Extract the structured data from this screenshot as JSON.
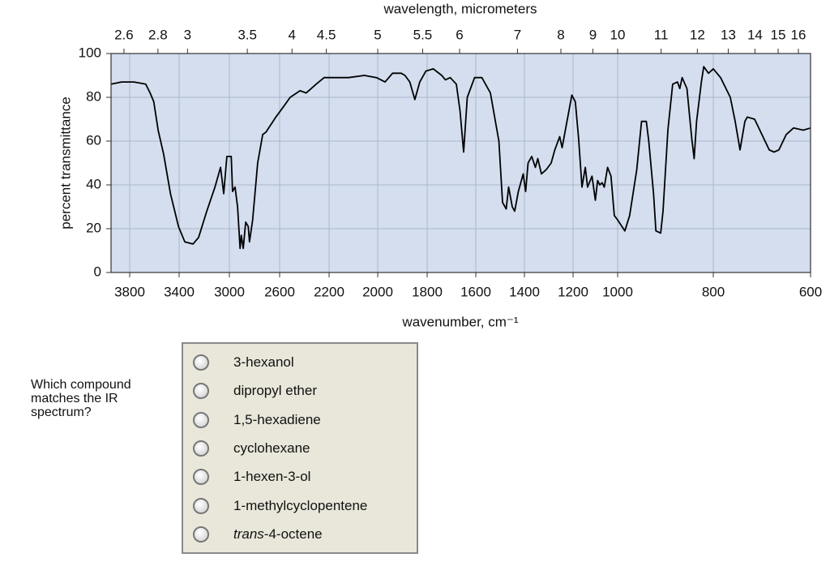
{
  "chart_data": {
    "type": "line",
    "x2_label": "wavelength, micrometers",
    "xlabel": "wavenumber, cm⁻¹",
    "ylabel": "percent transmittance",
    "xlim": [
      3950,
      600
    ],
    "ylim": [
      0,
      100
    ],
    "xticks": [
      3800,
      3400,
      3000,
      2600,
      2200,
      2000,
      1800,
      1600,
      1400,
      1200,
      1000,
      800,
      600
    ],
    "yticks": [
      0,
      20,
      40,
      60,
      80,
      100
    ],
    "x2ticks": [
      2.6,
      2.8,
      3,
      3.5,
      4,
      4.5,
      5,
      5.5,
      6,
      7,
      8,
      9,
      10,
      11,
      12,
      13,
      14,
      15,
      16
    ],
    "grid": true,
    "plot_background": "#d4deef",
    "series": [
      {
        "name": "spectrum",
        "color": "#000000",
        "x": [
          3950,
          3865,
          3765,
          3670,
          3635,
          3605,
          3570,
          3525,
          3470,
          3405,
          3355,
          3290,
          3245,
          3180,
          3115,
          3070,
          3045,
          3020,
          2985,
          2975,
          2955,
          2935,
          2915,
          2905,
          2890,
          2870,
          2850,
          2840,
          2815,
          2775,
          2735,
          2710,
          2630,
          2565,
          2515,
          2435,
          2385,
          2305,
          2240,
          2170,
          2120,
          2055,
          2005,
          1970,
          1940,
          1905,
          1890,
          1870,
          1850,
          1830,
          1805,
          1775,
          1740,
          1725,
          1705,
          1680,
          1665,
          1650,
          1635,
          1605,
          1575,
          1540,
          1505,
          1490,
          1475,
          1465,
          1450,
          1440,
          1425,
          1405,
          1395,
          1385,
          1370,
          1355,
          1345,
          1330,
          1310,
          1290,
          1275,
          1255,
          1245,
          1225,
          1205,
          1190,
          1175,
          1160,
          1145,
          1135,
          1115,
          1100,
          1090,
          1080,
          1070,
          1060,
          1045,
          1030,
          1015,
          1000,
          985,
          975,
          960,
          950,
          940,
          935,
          925,
          920,
          910,
          905,
          895,
          885,
          875,
          870,
          865,
          855,
          845,
          840,
          835,
          825,
          820,
          810,
          800,
          785,
          765,
          755,
          745,
          735,
          730,
          715,
          700,
          685,
          675,
          665,
          650,
          635,
          615,
          600
        ],
        "values": [
          86,
          87,
          87,
          86,
          82,
          78,
          65,
          54,
          36,
          21,
          14,
          13,
          16,
          28,
          39,
          48,
          36,
          53,
          53,
          37,
          39,
          30,
          11,
          17,
          11,
          23,
          21,
          14,
          24,
          50,
          63,
          64,
          71,
          76,
          80,
          83,
          82,
          86,
          89,
          89,
          89,
          90,
          89,
          87,
          91,
          91,
          90,
          87,
          79,
          87,
          92,
          93,
          90,
          88,
          89,
          86,
          74,
          55,
          80,
          89,
          89,
          82,
          60,
          32,
          29,
          39,
          30,
          28,
          37,
          45,
          37,
          50,
          53,
          48,
          52,
          45,
          47,
          50,
          56,
          62,
          57,
          69,
          81,
          78,
          61,
          39,
          48,
          39,
          44,
          33,
          42,
          40,
          41,
          39,
          48,
          44,
          26,
          24,
          19,
          26,
          47,
          69,
          69,
          60,
          36,
          19,
          18,
          28,
          65,
          86,
          87,
          84,
          89,
          84,
          61,
          52,
          69,
          87,
          94,
          91,
          93,
          89,
          80,
          69,
          56,
          69,
          71,
          70,
          63,
          56,
          55,
          56,
          63,
          66,
          65,
          66
        ]
      }
    ]
  },
  "quiz": {
    "question": "Which compound matches the IR spectrum?",
    "options": [
      "3-hexanol",
      "dipropyl ether",
      "1,5-hexadiene",
      "cyclohexane",
      "1-hexen-3-ol",
      "1-methylcyclopentene",
      {
        "em": "trans",
        "rest": "-4-octene"
      }
    ]
  }
}
